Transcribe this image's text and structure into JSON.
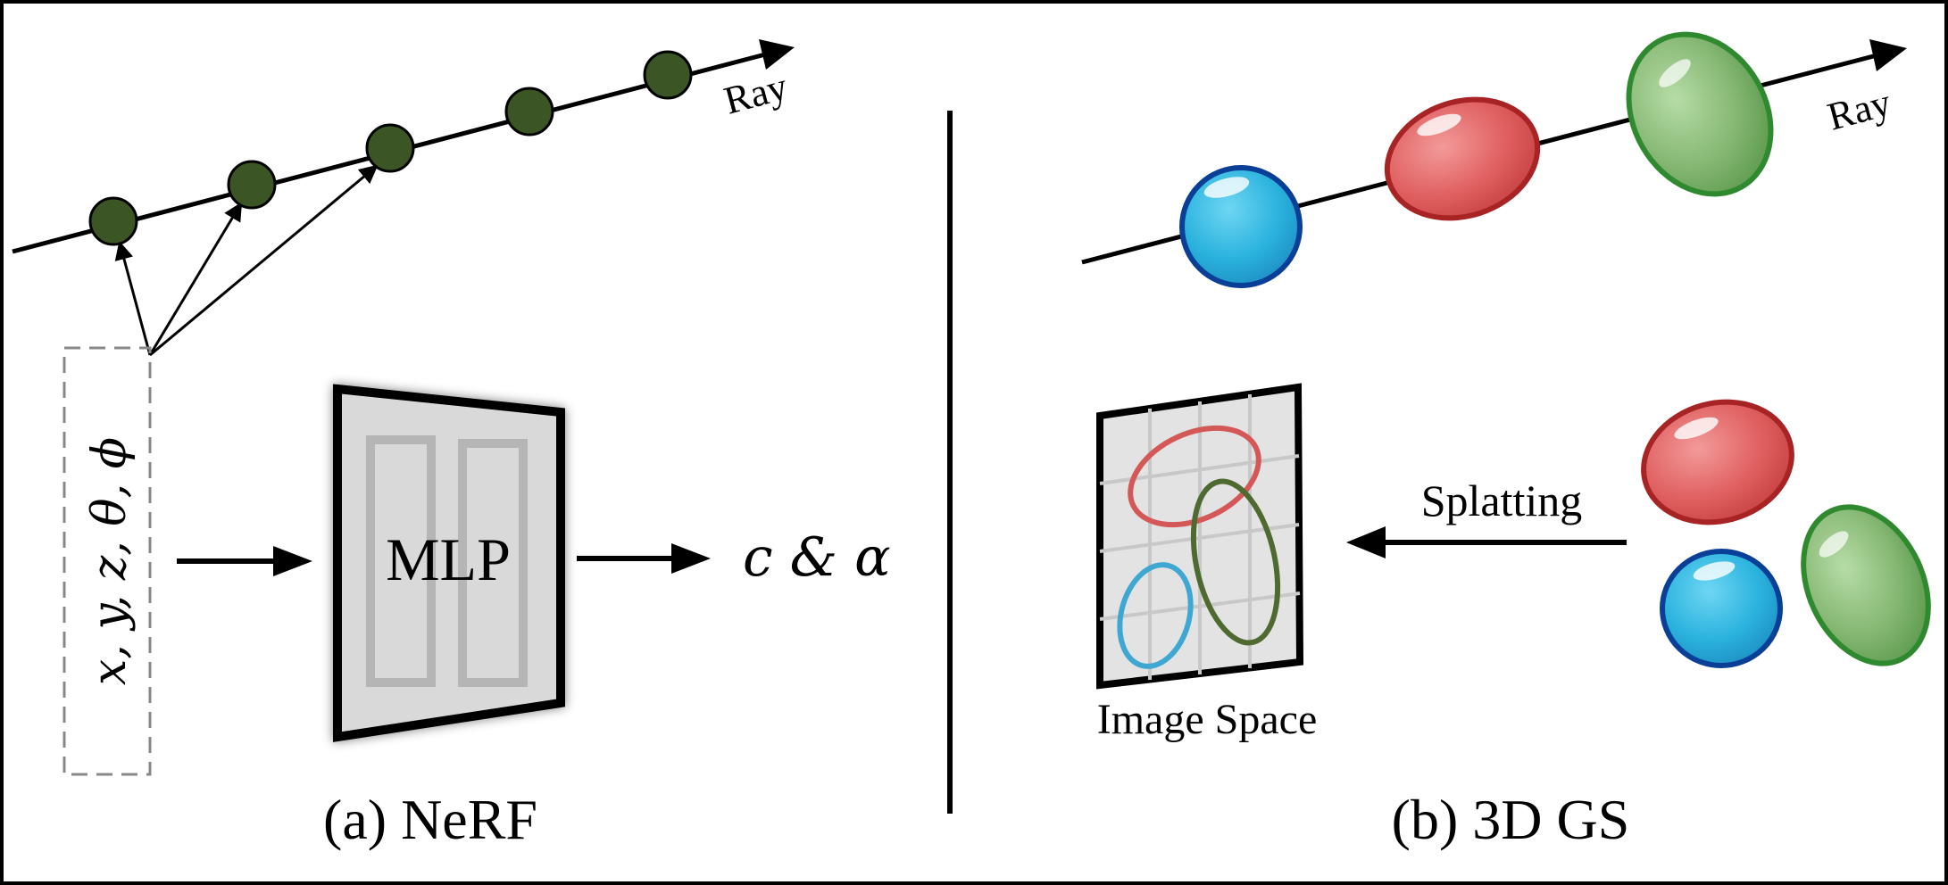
{
  "nerf": {
    "ray_label": "Ray",
    "input_label": "x, y, z, θ, ϕ",
    "mlp_label": "MLP",
    "output_label": "c & α",
    "caption": "(a) NeRF",
    "point_color": "#3b5524"
  },
  "gs": {
    "ray_label": "Ray",
    "splat_label": "Splatting",
    "image_space_label": "Image Space",
    "caption": "(b) 3D GS",
    "gaussians": [
      {
        "name": "blue-gaussian",
        "color": "#2bb3de",
        "edge": "#0a3f98"
      },
      {
        "name": "red-gaussian",
        "color": "#e06060",
        "edge": "#a82424"
      },
      {
        "name": "green-gaussian",
        "color": "#86b874",
        "edge": "#2f8a2f"
      }
    ]
  }
}
